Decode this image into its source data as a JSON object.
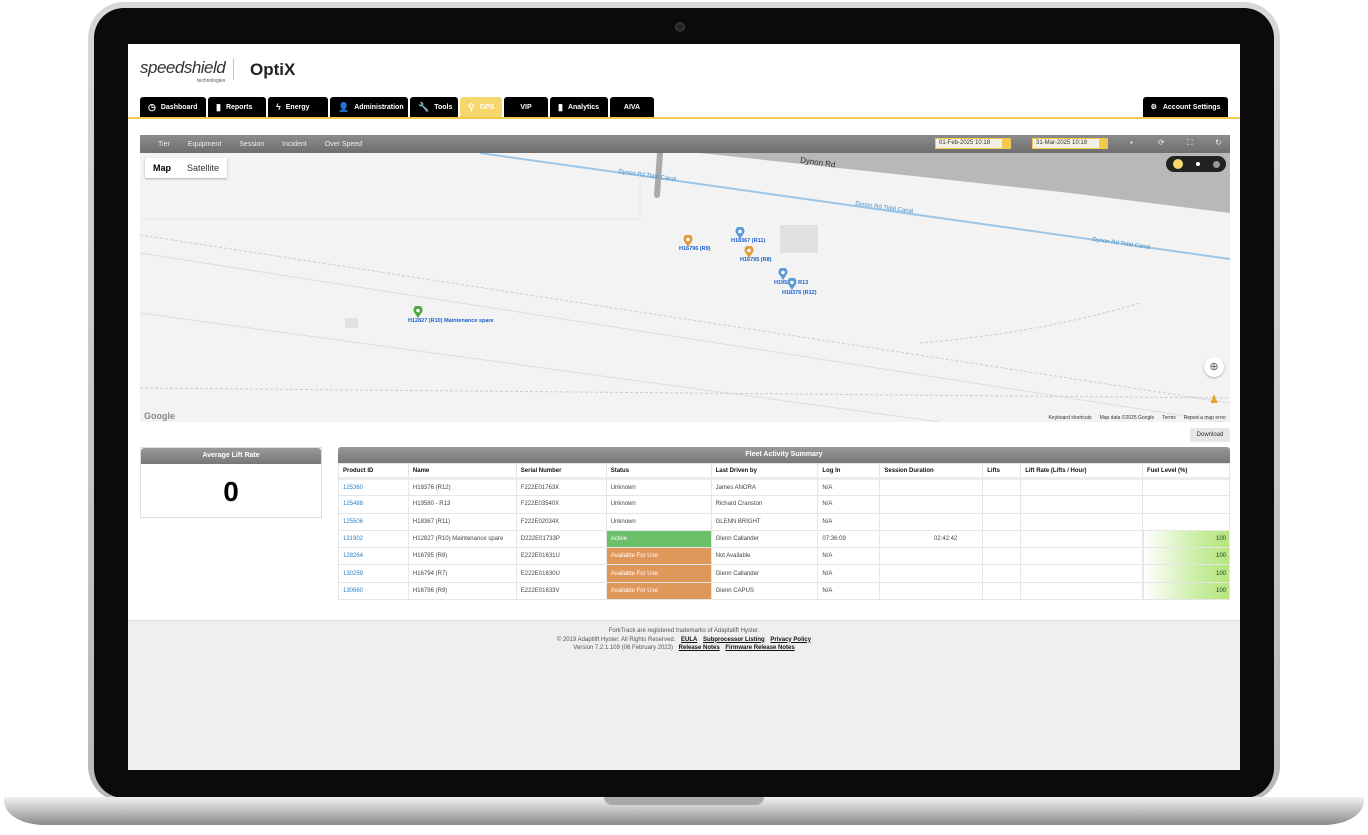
{
  "brand": {
    "logo": "speedshield",
    "logo_sub": "technologies",
    "product": "OptiX"
  },
  "nav": {
    "tabs": [
      {
        "label": "Dashboard",
        "icon": "clock-icon",
        "glyph": "◷"
      },
      {
        "label": "Reports",
        "icon": "bar-chart-icon",
        "glyph": "▮"
      },
      {
        "label": "Energy",
        "icon": "lightning-icon",
        "glyph": "ϟ"
      },
      {
        "label": "Administration",
        "icon": "user-icon",
        "glyph": "👤"
      },
      {
        "label": "Tools",
        "icon": "wrench-icon",
        "glyph": "🔧"
      },
      {
        "label": "GPS",
        "icon": "map-pin-icon",
        "glyph": "⚲",
        "active": true
      },
      {
        "label": "VIP",
        "icon": "",
        "glyph": ""
      },
      {
        "label": "Analytics",
        "icon": "bar-chart-icon",
        "glyph": "▮"
      },
      {
        "label": "AIVA",
        "icon": "",
        "glyph": ""
      }
    ],
    "account_settings": "Account Settings"
  },
  "toolbar": {
    "filters": [
      "Tier",
      "Equipment",
      "Session",
      "Incident",
      "Over Speed"
    ],
    "date_from": "01-Feb-2025 10:18",
    "date_to": "31-Mar-2025 10:18"
  },
  "map": {
    "type_map": "Map",
    "type_satellite": "Satellite",
    "roads": [
      "Dynon Rd",
      "Dynon Rd Tidal Canal",
      "Dynon Rd Tidal Canal",
      "Dynon Rd Tidal Canal"
    ],
    "markers": [
      {
        "label": "H16796 (R9)",
        "color": "#e29a3c"
      },
      {
        "label": "H18367 (R11)",
        "color": "#5b9bd5"
      },
      {
        "label": "H16795 (R8)",
        "color": "#e29a3c"
      },
      {
        "label": "H19580 - R13",
        "color": "#5b9bd5"
      },
      {
        "label": "H18376 (R12)",
        "color": "#5b9bd5"
      },
      {
        "label": "H12827 (R10) Maintenance spare",
        "color": "#4aa83c"
      }
    ],
    "google": "Google",
    "attribution": [
      "Keyboard shortcuts",
      "Map data ©2025 Google",
      "Terms",
      "Report a map error"
    ]
  },
  "download": "Download",
  "avg_lift_rate": {
    "title": "Average Lift Rate",
    "value": "0"
  },
  "fleet": {
    "title": "Fleet Activity Summary",
    "columns": [
      "Product ID",
      "Name",
      "Serial Number",
      "Status",
      "Last Driven by",
      "Log In",
      "Session Duration",
      "Lifts",
      "Lift Rate (Lifts / Hour)",
      "Fuel Level (%)"
    ],
    "rows": [
      [
        "125360",
        "H18376 (R12)",
        "F222E01763X",
        "Unknown",
        "James ANORA",
        "N/A",
        "",
        "",
        "",
        ""
      ],
      [
        "125488",
        "H19580 - R13",
        "F222E03540X",
        "Unknown",
        "Richard Cranston",
        "N/A",
        "",
        "",
        "",
        ""
      ],
      [
        "125506",
        "H18367 (R11)",
        "F222E02034X",
        "Unknown",
        "GLENN BRIGHT",
        "N/A",
        "",
        "",
        "",
        ""
      ],
      [
        "131902",
        "H12827 (R10) Maintenance spare",
        "D222E01733P",
        "Active",
        "Glenn Callander",
        "07:36:09",
        "02:42:42",
        "",
        "",
        "100"
      ],
      [
        "128264",
        "H16795 (R8)",
        "E222E01631U",
        "Available For Use",
        "Not Available",
        "N/A",
        "",
        "",
        "",
        "100"
      ],
      [
        "130259",
        "H16794 (R7)",
        "E222E01630U",
        "Available For Use",
        "Glenn Callander",
        "N/A",
        "",
        "",
        "",
        "100"
      ],
      [
        "130660",
        "H16796 (R9)",
        "E222E01633V",
        "Available For Use",
        "Glenn CAPUS",
        "N/A",
        "",
        "",
        "",
        "100"
      ]
    ]
  },
  "footer": {
    "line1": "ForkTrack are registered trademarks of Adaptalift Hyster.",
    "copyright": "© 2019 Adaptlift Hyster. All Rights Reserved.",
    "eula": "EULA",
    "subprocessor": "Subprocessor Listing",
    "privacy": "Privacy Policy",
    "version": "Version 7.2.1.109 (06 February 2023)",
    "release_notes": "Release Notes",
    "firmware_notes": "Firmware Release Notes"
  },
  "colors": {
    "accent": "#f2c94c",
    "active": "#6cc06a",
    "available": "#e0975a",
    "link": "#2a7fc1"
  }
}
